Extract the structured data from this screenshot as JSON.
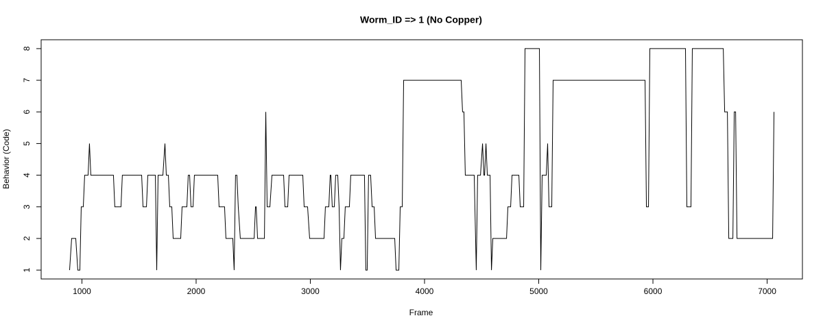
{
  "chart_data": {
    "type": "line",
    "title": "Worm_ID => 1 (No Copper)",
    "x_label": "Frame",
    "y_label": "Behavior (Code)",
    "x": [
      892,
      910,
      946,
      964,
      982,
      994,
      1012,
      1024,
      1054,
      1066,
      1078,
      1276,
      1288,
      1342,
      1354,
      1523,
      1535,
      1565,
      1577,
      1643,
      1655,
      1667,
      1709,
      1727,
      1739,
      1757,
      1769,
      1787,
      1799,
      1865,
      1877,
      1919,
      1931,
      1943,
      1955,
      1973,
      1985,
      2189,
      2201,
      2249,
      2261,
      2321,
      2333,
      2345,
      2357,
      2369,
      2387,
      2508,
      2520,
      2526,
      2538,
      2598,
      2610,
      2622,
      2646,
      2664,
      2766,
      2778,
      2802,
      2814,
      2934,
      2946,
      2976,
      2994,
      3120,
      3132,
      3162,
      3174,
      3180,
      3192,
      3210,
      3222,
      3240,
      3252,
      3264,
      3276,
      3294,
      3306,
      3342,
      3354,
      3474,
      3486,
      3498,
      3510,
      3528,
      3541,
      3559,
      3571,
      3739,
      3751,
      3775,
      3787,
      3805,
      3817,
      4321,
      4333,
      4345,
      4357,
      4435,
      4453,
      4465,
      4490,
      4508,
      4520,
      4526,
      4538,
      4550,
      4574,
      4586,
      4598,
      4718,
      4730,
      4754,
      4766,
      4826,
      4838,
      4868,
      4880,
      5006,
      5018,
      5030,
      5066,
      5078,
      5090,
      5114,
      5126,
      5931,
      5943,
      5961,
      5973,
      6285,
      6297,
      6333,
      6345,
      6616,
      6628,
      6652,
      6664,
      6700,
      6712,
      6724,
      6736,
      7048,
      7060
    ],
    "values": [
      1,
      2,
      2,
      1,
      1,
      3,
      3,
      4,
      4,
      5,
      4,
      4,
      3,
      3,
      4,
      4,
      3,
      3,
      4,
      4,
      1,
      4,
      4,
      5,
      4,
      4,
      3,
      3,
      2,
      2,
      3,
      3,
      4,
      4,
      3,
      3,
      4,
      4,
      3,
      3,
      2,
      2,
      1,
      4,
      4,
      3,
      2,
      2,
      3,
      3,
      2,
      2,
      6,
      3,
      3,
      4,
      4,
      3,
      3,
      4,
      4,
      3,
      3,
      2,
      2,
      3,
      3,
      4,
      4,
      3,
      3,
      4,
      4,
      3,
      1,
      2,
      2,
      3,
      3,
      4,
      4,
      1,
      1,
      4,
      4,
      3,
      3,
      2,
      2,
      1,
      1,
      3,
      3,
      7,
      7,
      6,
      6,
      4,
      4,
      1,
      4,
      4,
      5,
      4,
      4,
      5,
      4,
      4,
      1,
      2,
      2,
      3,
      3,
      4,
      4,
      3,
      3,
      8,
      8,
      1,
      4,
      4,
      5,
      3,
      3,
      7,
      7,
      3,
      3,
      8,
      8,
      3,
      3,
      8,
      8,
      6,
      6,
      2,
      2,
      6,
      6,
      2,
      2,
      6
    ],
    "color": "#000000",
    "xlim": [
      643,
      7309
    ],
    "ylim": [
      0.72,
      8.28
    ],
    "xticks": [
      1000,
      2000,
      3000,
      4000,
      5000,
      6000,
      7000
    ],
    "yticks": [
      1,
      2,
      3,
      4,
      5,
      6,
      7,
      8
    ],
    "grid": false
  }
}
